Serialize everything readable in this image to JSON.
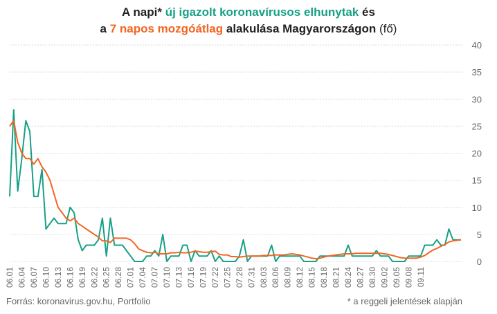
{
  "title": {
    "line1": {
      "a": "A napi* ",
      "b": "új igazolt koronavírusos elhunytak",
      "c": " és"
    },
    "line2": {
      "a": "a ",
      "b": "7 napos mozgóátlag",
      "c": " alakulása Magyarországon",
      "d": " (fő)"
    }
  },
  "footer": {
    "source": "Forrás: koronavirus.gov.hu, Portfolio",
    "note": "* a reggeli jelentések alapján"
  },
  "colors": {
    "daily": "#16a085",
    "average": "#f26522",
    "grid": "#d9d9d9",
    "text": "#666666"
  },
  "chart_data": {
    "type": "line",
    "ylim": [
      0,
      40
    ],
    "yticks": [
      0,
      5,
      10,
      15,
      20,
      25,
      30,
      35,
      40
    ],
    "grid": true,
    "yaxis_position": "right",
    "xticklabels": [
      "06.01",
      "06.04",
      "06.07",
      "06.10",
      "06.13",
      "06.16",
      "06.19",
      "06.22",
      "06.25",
      "06.28",
      "07.01",
      "07.04",
      "07.07",
      "07.10",
      "07.13",
      "07.16",
      "07.19",
      "07.22",
      "07.25",
      "07.28",
      "07.31",
      "08.03",
      "08.06",
      "08.09",
      "08.12",
      "08.15",
      "08.18",
      "08.21",
      "08.24",
      "08.27",
      "08.30",
      "09.02",
      "09.05",
      "09.08",
      "09.11"
    ],
    "series": [
      {
        "values": [
          12,
          28,
          13,
          19,
          26,
          24,
          12,
          12,
          17,
          6,
          7,
          8,
          7,
          7,
          7,
          10,
          9,
          4,
          2,
          3,
          3,
          3,
          4,
          8,
          1,
          8,
          3,
          3,
          3,
          2,
          1,
          0,
          0,
          0,
          1,
          1,
          2,
          1,
          5,
          0,
          1,
          1,
          1,
          3,
          3,
          0,
          2,
          1,
          1,
          1,
          2,
          0,
          1,
          0,
          0,
          0,
          0,
          1,
          4,
          0,
          1,
          1,
          1,
          1,
          1,
          3,
          0,
          1,
          1,
          1,
          1,
          1,
          1,
          0,
          0,
          0,
          0,
          1,
          1,
          1,
          1,
          1,
          1,
          1,
          3,
          1,
          1,
          1,
          1,
          1,
          1,
          2,
          1,
          1,
          1,
          0,
          0,
          0,
          0,
          1,
          1,
          1,
          1,
          3,
          3,
          3,
          4,
          3,
          3,
          6,
          4,
          4,
          4
        ]
      },
      {
        "values": [
          25,
          26,
          22,
          20,
          19,
          19,
          18,
          19,
          17.5,
          16.5,
          15,
          12.5,
          10,
          9,
          8,
          7.5,
          8,
          7,
          6.5,
          6,
          5.5,
          5,
          4.5,
          3.8,
          3.8,
          3.5,
          4.3,
          4.3,
          4.3,
          4.3,
          4,
          3.3,
          2.3,
          2,
          1.7,
          1.6,
          1.7,
          1.4,
          1.4,
          1.4,
          1.6,
          1.6,
          1.7,
          1.6,
          1.6,
          1.7,
          1.9,
          1.8,
          1.7,
          1.7,
          1.8,
          1.9,
          1.3,
          1.2,
          1.2,
          0.9,
          0.9,
          0.8,
          0.9,
          1,
          1,
          1,
          1,
          1.1,
          1.1,
          1.1,
          1.2,
          1.2,
          1.2,
          1.3,
          1.4,
          1.3,
          1.2,
          1,
          0.8,
          0.6,
          0.5,
          0.6,
          0.8,
          1,
          1.1,
          1.2,
          1.3,
          1.4,
          1.4,
          1.4,
          1.5,
          1.5,
          1.5,
          1.5,
          1.5,
          1.5,
          1.5,
          1.4,
          1.3,
          1.1,
          0.9,
          0.7,
          0.6,
          0.6,
          0.6,
          0.6,
          0.8,
          1.1,
          1.6,
          2.1,
          2.4,
          2.8,
          3.1,
          3.6,
          3.8,
          3.9,
          4
        ]
      }
    ]
  }
}
